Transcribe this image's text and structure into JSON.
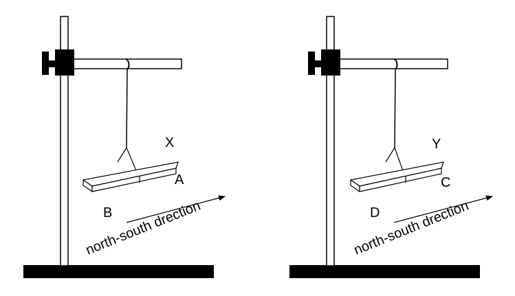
{
  "panels": [
    {
      "id": "left",
      "magnet_label": "X",
      "end_far": "A",
      "end_near": "B",
      "direction_text": "north-south drection"
    },
    {
      "id": "right",
      "magnet_label": "Y",
      "end_far": "C",
      "end_near": "D",
      "direction_text": "north-south drection"
    }
  ],
  "colors": {
    "ink": "#000000",
    "background": "#ffffff"
  }
}
